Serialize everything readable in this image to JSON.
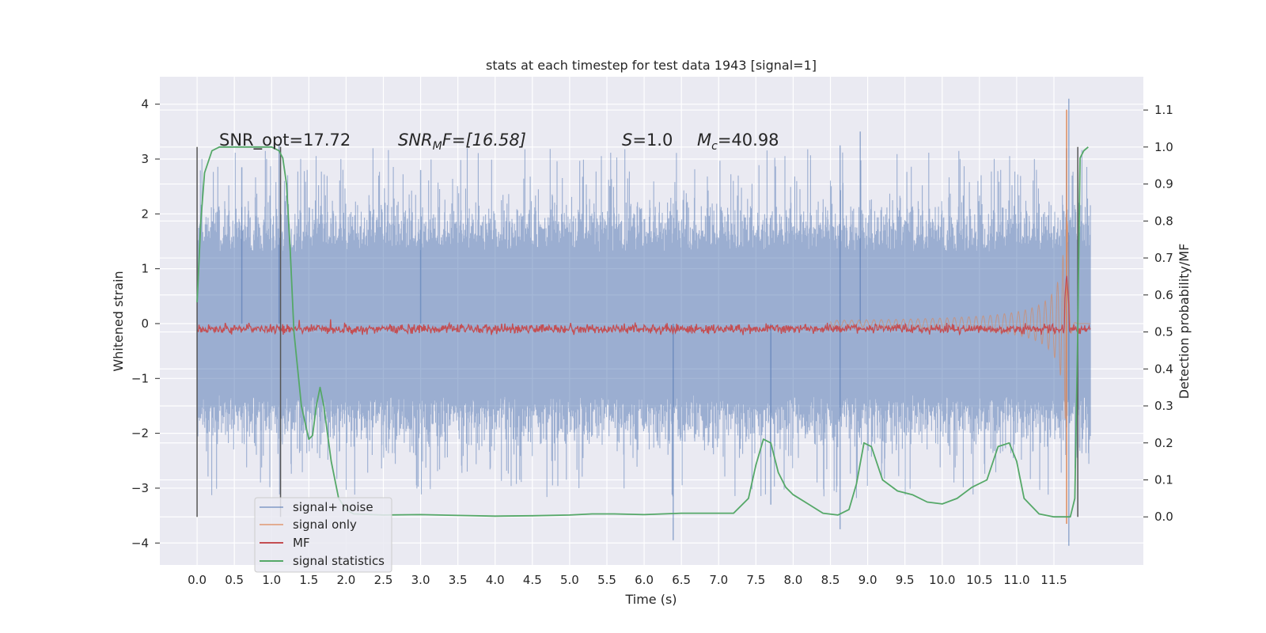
{
  "chart_data": {
    "type": "line",
    "title": "stats at each timestep for test data 1943 [signal=1]",
    "xlabel": "Time (s)",
    "ylabel": "Whitened strain",
    "y2label": "Detection probability/MF",
    "xlim": [
      -0.5,
      12.7
    ],
    "ylim": [
      -4.4,
      4.5
    ],
    "y2lim": [
      -0.13,
      1.19
    ],
    "x_ticks": [
      "0.0",
      "0.5",
      "1.0",
      "1.5",
      "2.0",
      "2.5",
      "3.0",
      "3.5",
      "4.0",
      "4.5",
      "5.0",
      "5.5",
      "6.0",
      "6.5",
      "7.0",
      "7.5",
      "8.0",
      "8.5",
      "9.0",
      "9.5",
      "10.0",
      "10.5",
      "11.0",
      "11.5"
    ],
    "y_ticks": [
      "4",
      "3",
      "2",
      "1",
      "0",
      "−1",
      "−2",
      "−3",
      "−4"
    ],
    "y2_ticks": [
      "1.1",
      "1.0",
      "0.9",
      "0.8",
      "0.7",
      "0.6",
      "0.5",
      "0.4",
      "0.3",
      "0.2",
      "0.1",
      "0.0"
    ],
    "grid": true,
    "legend_placement": "lower-left",
    "annotations": {
      "snr_opt": "SNR_opt=17.72",
      "snr_mf_prefix": "SNR",
      "snr_mf_sub": "M",
      "snr_mf_suffix": "F=[16.58]",
      "s_sym": "S",
      "s_val": "=1.0",
      "mc_sym": "M",
      "mc_sub": "c",
      "mc_val": "=40.98"
    },
    "legend": [
      "signal+ noise",
      "signal only",
      "MF",
      "signal statistics"
    ],
    "colors": {
      "signal_noise": "#4c72b0",
      "signal_only": "#dd8452",
      "mf": "#c44e52",
      "statistics": "#55a868",
      "background": "#eaeaf2",
      "grid": "#ffffff",
      "markers": "#555555"
    },
    "series": [
      {
        "name": "signal+ noise",
        "type": "noise-band",
        "x_range": [
          0.0,
          11.99
        ],
        "typical_amplitude": 1.3,
        "extremes": [
          [
            0.6,
            2.85
          ],
          [
            1.1,
            3.25
          ],
          [
            3.0,
            2.8
          ],
          [
            6.39,
            -3.95
          ],
          [
            7.7,
            -3.3
          ],
          [
            8.63,
            3.25
          ],
          [
            8.63,
            -3.75
          ],
          [
            8.9,
            3.5
          ],
          [
            11.7,
            4.1
          ],
          [
            11.7,
            -4.05
          ]
        ]
      },
      {
        "name": "signal only",
        "type": "chirp",
        "x_range": [
          8.5,
          11.99
        ],
        "peak": [
          11.67,
          3.9
        ],
        "trough": [
          11.67,
          -3.65
        ]
      },
      {
        "name": "MF",
        "type": "line",
        "axis": "y2",
        "baseline": 0.505,
        "peak": [
          11.67,
          0.66
        ]
      },
      {
        "name": "signal statistics",
        "type": "line",
        "axis": "y2",
        "x": [
          0.0,
          0.05,
          0.1,
          0.2,
          0.3,
          0.5,
          0.8,
          1.0,
          1.1,
          1.15,
          1.2,
          1.25,
          1.3,
          1.4,
          1.5,
          1.55,
          1.6,
          1.65,
          1.7,
          1.8,
          1.9,
          2.0,
          2.1,
          2.5,
          3.0,
          3.5,
          4.0,
          4.5,
          5.0,
          5.3,
          5.6,
          6.0,
          6.5,
          7.0,
          7.2,
          7.4,
          7.5,
          7.6,
          7.7,
          7.8,
          7.9,
          8.0,
          8.2,
          8.4,
          8.6,
          8.75,
          8.85,
          8.95,
          9.05,
          9.2,
          9.4,
          9.6,
          9.8,
          10.0,
          10.2,
          10.4,
          10.6,
          10.75,
          10.9,
          11.0,
          11.1,
          11.3,
          11.5,
          11.65,
          11.72,
          11.78,
          11.82,
          11.85,
          11.9,
          11.96
        ],
        "y": [
          0.58,
          0.8,
          0.93,
          0.99,
          1.0,
          1.0,
          1.0,
          1.0,
          0.99,
          0.97,
          0.9,
          0.72,
          0.5,
          0.3,
          0.21,
          0.22,
          0.3,
          0.35,
          0.3,
          0.15,
          0.05,
          0.02,
          0.008,
          0.005,
          0.006,
          0.004,
          0.002,
          0.003,
          0.005,
          0.008,
          0.008,
          0.006,
          0.01,
          0.01,
          0.01,
          0.05,
          0.14,
          0.21,
          0.2,
          0.12,
          0.08,
          0.06,
          0.035,
          0.01,
          0.005,
          0.02,
          0.09,
          0.2,
          0.19,
          0.1,
          0.07,
          0.06,
          0.04,
          0.035,
          0.05,
          0.08,
          0.1,
          0.19,
          0.2,
          0.15,
          0.05,
          0.008,
          0.0,
          0.0,
          0.0,
          0.05,
          0.5,
          0.97,
          0.99,
          1.0
        ]
      }
    ],
    "markers": [
      0.0,
      1.12,
      11.82
    ]
  }
}
